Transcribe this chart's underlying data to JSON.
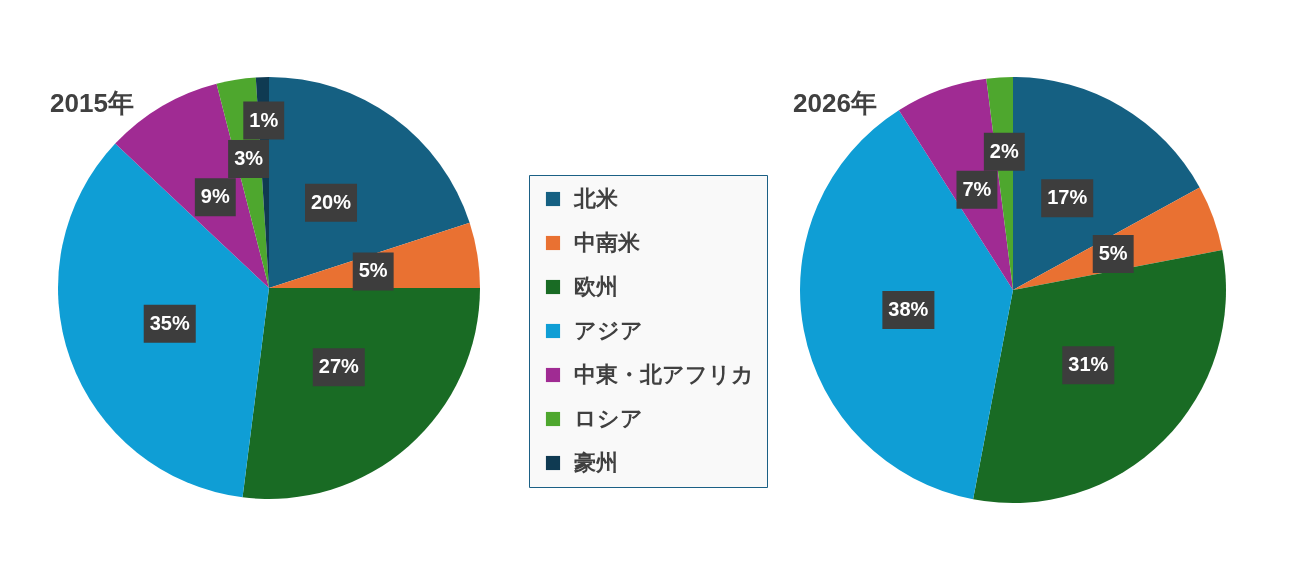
{
  "chart_data": {
    "type": "pie",
    "categories": [
      "北米",
      "中南米",
      "欧州",
      "アジア",
      "中東・北アフリカ",
      "ロシア",
      "豪州"
    ],
    "colors": [
      "#156082",
      "#e97132",
      "#196b24",
      "#0f9ed5",
      "#a02b93",
      "#4ea72e",
      "#0f3a52"
    ],
    "legend": "center",
    "series": [
      {
        "name": "2015年",
        "values": [
          20,
          5,
          27,
          35,
          9,
          3,
          1
        ],
        "value_labels": [
          "20%",
          "5%",
          "27%",
          "35%",
          "9%",
          "3%",
          "1%"
        ]
      },
      {
        "name": "2026年",
        "values": [
          17,
          5,
          31,
          38,
          7,
          2,
          null
        ],
        "value_labels": [
          "17%",
          "5%",
          "31%",
          "38%",
          "7%",
          "2%",
          null
        ]
      }
    ]
  }
}
